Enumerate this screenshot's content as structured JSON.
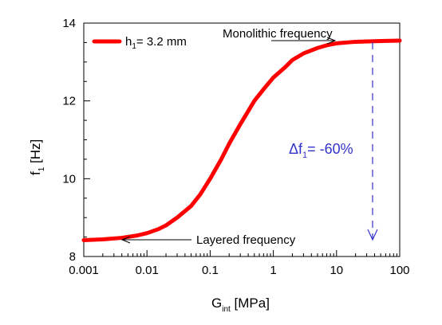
{
  "chart_data": {
    "type": "line",
    "x_scale": "log",
    "xlim": [
      0.001,
      100
    ],
    "ylim": [
      8,
      14
    ],
    "x_ticks": [
      "0.001",
      "0.01",
      "0.1",
      "1",
      "10",
      "100"
    ],
    "y_ticks": [
      "8",
      "10",
      "12",
      "14"
    ],
    "xlabel": {
      "main": "G",
      "sub": "int",
      "rest": "  [MPa]"
    },
    "ylabel": {
      "main": "f",
      "sub": "1",
      "rest": "  [Hz]"
    },
    "grid": false,
    "legend": {
      "position": "top-left",
      "entry_main": "h",
      "entry_sub": "1",
      "entry_rest": "= 3.2 mm"
    },
    "series": [
      {
        "color": "#ff0000",
        "x": [
          0.001,
          0.002,
          0.004,
          0.007,
          0.01,
          0.015,
          0.02,
          0.03,
          0.05,
          0.07,
          0.1,
          0.15,
          0.2,
          0.3,
          0.5,
          0.7,
          1,
          1.5,
          2,
          3,
          5,
          7,
          10,
          20,
          50,
          100
        ],
        "y": [
          8.42,
          8.44,
          8.48,
          8.54,
          8.6,
          8.7,
          8.8,
          9.0,
          9.3,
          9.6,
          10.0,
          10.5,
          10.9,
          11.4,
          12.0,
          12.3,
          12.6,
          12.85,
          13.05,
          13.22,
          13.36,
          13.43,
          13.48,
          13.52,
          13.54,
          13.55
        ]
      }
    ],
    "annotations": {
      "monolithic": "Monolithic frequency",
      "layered": "Layered frequency",
      "delta_prefix": "Δf",
      "delta_sub": "1",
      "delta_rest": "= -60%",
      "delta_color": "#3333cc"
    }
  }
}
